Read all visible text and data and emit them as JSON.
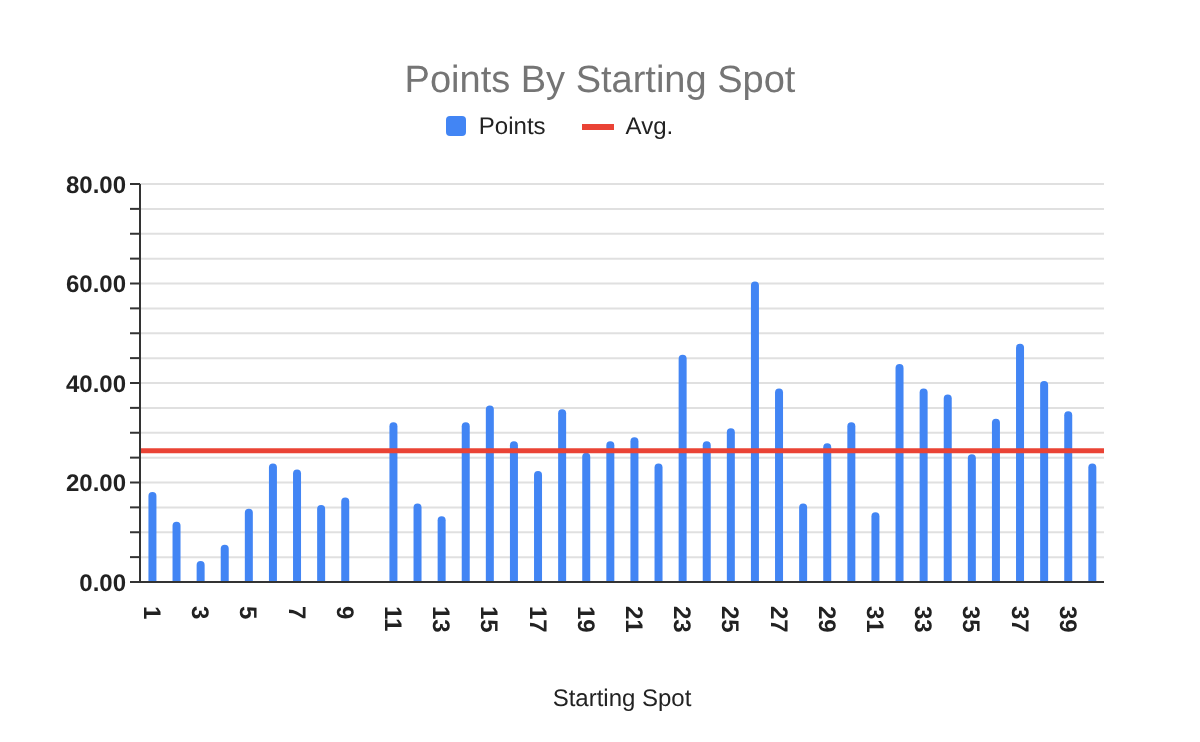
{
  "chart_data": {
    "type": "bar",
    "title": "Points By Starting Spot",
    "xlabel": "Starting Spot",
    "categories": [
      "1",
      null,
      "3",
      null,
      "5",
      null,
      "7",
      null,
      "9",
      null,
      "11",
      null,
      "13",
      null,
      "15",
      null,
      "17",
      null,
      "19",
      null,
      "21",
      null,
      "23",
      null,
      "25",
      null,
      "27",
      null,
      "29",
      null,
      "31",
      null,
      "33",
      null,
      "35",
      null,
      "37",
      null,
      "39",
      null
    ],
    "series": [
      {
        "name": "Points",
        "color": "#4285f4",
        "values": [
          18.1,
          12.1,
          4.2,
          7.5,
          14.7,
          23.8,
          22.6,
          15.5,
          17.0,
          null,
          32.1,
          15.8,
          13.2,
          32.1,
          35.5,
          28.3,
          22.3,
          34.7,
          26.0,
          28.3,
          29.1,
          23.8,
          45.7,
          28.3,
          30.9,
          60.4,
          38.9,
          15.8,
          27.9,
          32.1,
          14.0,
          43.8,
          38.9,
          37.7,
          25.7,
          32.8,
          47.9,
          40.4,
          34.3,
          23.8
        ]
      }
    ],
    "ref_lines": [
      {
        "axis": "y",
        "value": 26.4,
        "label": "Avg.",
        "color": "#ea4335"
      }
    ],
    "ylim": [
      0,
      80
    ],
    "yticks": [
      {
        "value": 0,
        "label": "0.00"
      },
      {
        "value": 5,
        "label": null
      },
      {
        "value": 10,
        "label": null
      },
      {
        "value": 15,
        "label": null
      },
      {
        "value": 20,
        "label": "20.00"
      },
      {
        "value": 25,
        "label": null
      },
      {
        "value": 30,
        "label": null
      },
      {
        "value": 35,
        "label": null
      },
      {
        "value": 40,
        "label": "40.00"
      },
      {
        "value": 45,
        "label": null
      },
      {
        "value": 50,
        "label": null
      },
      {
        "value": 55,
        "label": null
      },
      {
        "value": 60,
        "label": "60.00"
      },
      {
        "value": 65,
        "label": null
      },
      {
        "value": 70,
        "label": null
      },
      {
        "value": 75,
        "label": null
      },
      {
        "value": 80,
        "label": "80.00"
      }
    ],
    "grid": "y",
    "legend": "top"
  }
}
